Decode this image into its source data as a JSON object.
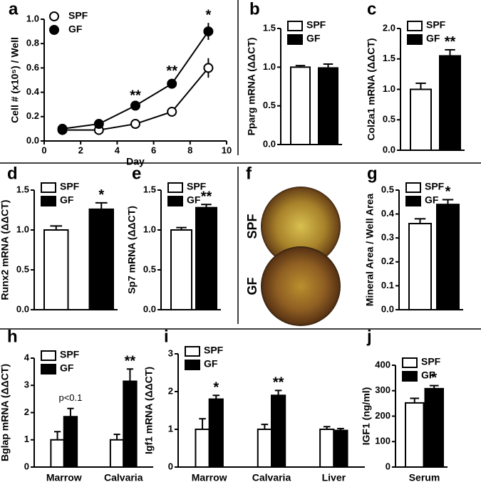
{
  "chart_data": [
    {
      "type": "line",
      "panel": "a",
      "ylabel": "Cell # (x10⁵) / Well",
      "xlabel": "Day",
      "x": [
        1,
        3,
        5,
        7,
        9
      ],
      "series": [
        {
          "name": "SPF",
          "color": "#ffffff",
          "values": [
            0.09,
            0.09,
            0.14,
            0.24,
            0.6
          ],
          "errors": [
            0.01,
            0.01,
            0.01,
            0.03,
            0.08
          ]
        },
        {
          "name": "GF",
          "color": "#000000",
          "values": [
            0.1,
            0.14,
            0.29,
            0.47,
            0.9
          ],
          "errors": [
            0.01,
            0.01,
            0.02,
            0.04,
            0.07
          ]
        }
      ],
      "annotations": [
        null,
        null,
        "**",
        "**",
        "*"
      ],
      "xlim": [
        0,
        10
      ],
      "xticks": [
        0,
        2,
        4,
        6,
        8,
        10
      ],
      "ylim": [
        0,
        1
      ],
      "yticks": [
        {
          "value": 0,
          "label": "0.0"
        },
        0.2,
        0.4,
        0.6,
        0.8,
        {
          "value": 1,
          "label": "1.0"
        }
      ]
    },
    {
      "type": "bar",
      "panel": "b",
      "ylabel": "Pparg mRNA (ΔΔCT)",
      "categories": [
        null
      ],
      "series": [
        {
          "name": "SPF",
          "color": "#ffffff",
          "values": [
            1.0
          ],
          "errors": [
            0.02
          ]
        },
        {
          "name": "GF",
          "color": "#000000",
          "values": [
            0.99
          ],
          "errors": [
            0.05
          ]
        }
      ],
      "annotations": [
        null
      ],
      "ylim": [
        0,
        1.5
      ],
      "yticks": [
        {
          "value": 0,
          "label": "0.0"
        },
        0.5,
        {
          "value": 1,
          "label": "1.0"
        },
        1.5
      ]
    },
    {
      "type": "bar",
      "panel": "c",
      "ylabel": "Col2a1 mRNA (ΔΔCT)",
      "categories": [
        null
      ],
      "series": [
        {
          "name": "SPF",
          "color": "#ffffff",
          "values": [
            1.0
          ],
          "errors": [
            0.1
          ]
        },
        {
          "name": "GF",
          "color": "#000000",
          "values": [
            1.55
          ],
          "errors": [
            0.1
          ]
        }
      ],
      "annotations": [
        "**"
      ],
      "ylim": [
        0,
        2
      ],
      "yticks": [
        {
          "value": 0,
          "label": "0.0"
        },
        0.5,
        {
          "value": 1,
          "label": "1.0"
        },
        1.5,
        {
          "value": 2,
          "label": "2.0"
        }
      ]
    },
    {
      "type": "bar",
      "panel": "d",
      "ylabel": "Runx2 mRNA (ΔΔCT)",
      "categories": [
        null
      ],
      "series": [
        {
          "name": "SPF",
          "color": "#ffffff",
          "values": [
            1.0
          ],
          "errors": [
            0.05
          ]
        },
        {
          "name": "GF",
          "color": "#000000",
          "values": [
            1.26
          ],
          "errors": [
            0.08
          ]
        }
      ],
      "annotations": [
        "*"
      ],
      "ylim": [
        0,
        1.5
      ],
      "yticks": [
        {
          "value": 0,
          "label": "0.0"
        },
        0.5,
        {
          "value": 1,
          "label": "1.0"
        },
        1.5
      ]
    },
    {
      "type": "bar",
      "panel": "e",
      "ylabel": "Sp7 mRNA (ΔΔCT)",
      "categories": [
        null
      ],
      "series": [
        {
          "name": "SPF",
          "color": "#ffffff",
          "values": [
            1.0
          ],
          "errors": [
            0.03
          ]
        },
        {
          "name": "GF",
          "color": "#000000",
          "values": [
            1.28
          ],
          "errors": [
            0.04
          ]
        }
      ],
      "annotations": [
        "**"
      ],
      "ylim": [
        0,
        1.5
      ],
      "yticks": [
        {
          "value": 0,
          "label": "0.0"
        },
        0.5,
        {
          "value": 1,
          "label": "1.0"
        },
        1.5
      ]
    },
    {
      "type": "image",
      "panel": "f",
      "labels": [
        "SPF",
        "GF"
      ]
    },
    {
      "type": "bar",
      "panel": "g",
      "ylabel": "Mineral Area / Well Area",
      "categories": [
        null
      ],
      "series": [
        {
          "name": "SPF",
          "color": "#ffffff",
          "values": [
            0.36
          ],
          "errors": [
            0.02
          ]
        },
        {
          "name": "GF",
          "color": "#000000",
          "values": [
            0.44
          ],
          "errors": [
            0.02
          ]
        }
      ],
      "annotations": [
        "*"
      ],
      "ylim": [
        0,
        0.5
      ],
      "yticks": [
        {
          "value": 0,
          "label": "0.0"
        },
        0.1,
        0.2,
        0.3,
        0.4,
        0.5
      ]
    },
    {
      "type": "bar",
      "panel": "h",
      "ylabel": "Bglap mRNA (ΔΔCT)",
      "categories": [
        "Marrow",
        "Calvaria"
      ],
      "series": [
        {
          "name": "SPF",
          "color": "#ffffff",
          "values": [
            1.0,
            1.0
          ],
          "errors": [
            0.3,
            0.2
          ]
        },
        {
          "name": "GF",
          "color": "#000000",
          "values": [
            1.85,
            3.15
          ],
          "errors": [
            0.3,
            0.45
          ]
        }
      ],
      "annotations": [
        "p<0.1",
        "**"
      ],
      "ylim": [
        0,
        4
      ],
      "yticks": [
        0,
        1,
        2,
        3,
        4
      ]
    },
    {
      "type": "bar",
      "panel": "i",
      "ylabel": "Igf1 mRNA (ΔΔCT)",
      "categories": [
        "Marrow",
        "Calvaria",
        "Liver"
      ],
      "series": [
        {
          "name": "SPF",
          "color": "#ffffff",
          "values": [
            1.0,
            1.0,
            1.0
          ],
          "errors": [
            0.28,
            0.13,
            0.07
          ]
        },
        {
          "name": "GF",
          "color": "#000000",
          "values": [
            1.8,
            1.9,
            0.97
          ],
          "errors": [
            0.1,
            0.13,
            0.05
          ]
        }
      ],
      "annotations": [
        "*",
        "**",
        null
      ],
      "ylim": [
        0,
        3
      ],
      "yticks": [
        0,
        1,
        2,
        3
      ]
    },
    {
      "type": "bar",
      "panel": "j",
      "ylabel": "IGF1 (ng/ml)",
      "categories": [
        "Serum"
      ],
      "series": [
        {
          "name": "SPF",
          "color": "#ffffff",
          "values": [
            252
          ],
          "errors": [
            18
          ]
        },
        {
          "name": "GF",
          "color": "#000000",
          "values": [
            308
          ],
          "errors": [
            12
          ]
        }
      ],
      "annotations": [
        "*"
      ],
      "ylim": [
        0,
        400
      ],
      "yticks": [
        0,
        100,
        200,
        300,
        400
      ]
    }
  ]
}
